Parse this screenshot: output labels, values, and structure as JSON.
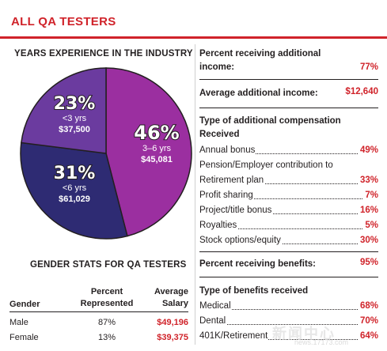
{
  "header": {
    "title": "ALL QA TESTERS",
    "accent": "#d0232a"
  },
  "pie_section": {
    "title": "YEARS EXPERIENCE IN THE INDUSTRY"
  },
  "chart_data": {
    "type": "pie",
    "title": "YEARS EXPERIENCE IN THE INDUSTRY",
    "slices": [
      {
        "percent": 46,
        "label": "46%",
        "sub": "3–6 yrs",
        "salary": "$45,081",
        "color": "#9b2fa0"
      },
      {
        "percent": 31,
        "label": "31%",
        "sub": "<6 yrs",
        "salary": "$61,029",
        "color": "#2e2b73"
      },
      {
        "percent": 23,
        "label": "23%",
        "sub": "<3 yrs",
        "salary": "$37,500",
        "color": "#6b3b9f"
      }
    ]
  },
  "gender": {
    "title": "GENDER STATS FOR QA TESTERS",
    "headers": {
      "gender": "Gender",
      "pct_1": "Percent",
      "pct_2": "Represented",
      "sal_1": "Average",
      "sal_2": "Salary"
    },
    "rows": [
      {
        "gender": "Male",
        "percent": "87%",
        "salary": "$49,196"
      },
      {
        "gender": "Female",
        "percent": "13%",
        "salary": "$39,375"
      }
    ]
  },
  "additional_income": {
    "label_1": "Percent receiving additional",
    "label_2": "income:",
    "value": "77%"
  },
  "average_income": {
    "label": "Average additional income:",
    "value": "$12,640"
  },
  "compensation": {
    "title_1": "Type of additional compensation",
    "title_2": "Received",
    "items": [
      {
        "label": "Annual bonus",
        "value": "49%"
      },
      {
        "label": "Pension/Employer contribution to",
        "value": ""
      },
      {
        "label": "Retirement plan",
        "value": "33%"
      },
      {
        "label": "Profit sharing",
        "value": "7%"
      },
      {
        "label": "Project/title bonus",
        "value": "16%"
      },
      {
        "label": "Royalties",
        "value": "5%"
      },
      {
        "label": "Stock options/equity",
        "value": "30%"
      }
    ]
  },
  "benefits": {
    "label": "Percent receiving benefits:",
    "value": "95%"
  },
  "benefit_types": {
    "title": "Type of benefits received",
    "items": [
      {
        "label": "Medical",
        "value": "68%"
      },
      {
        "label": "Dental",
        "value": "70%"
      },
      {
        "label": "401K/Retirement",
        "value": "64%"
      }
    ]
  },
  "watermark": {
    "text": "新闻中心",
    "url": "news.17173.com"
  }
}
